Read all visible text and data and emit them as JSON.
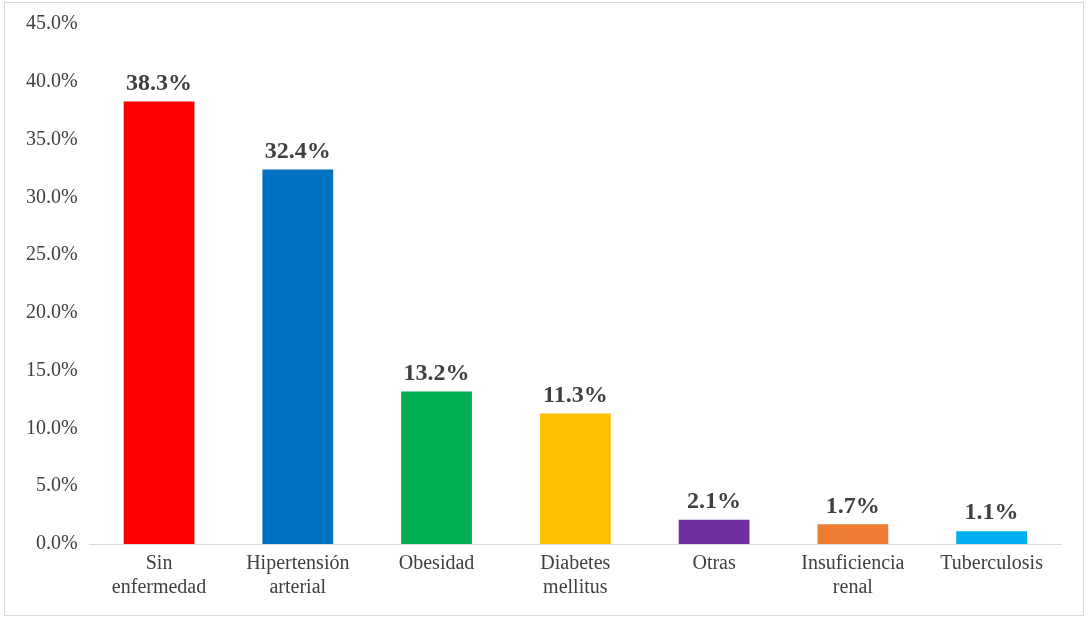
{
  "chart_data": {
    "type": "bar",
    "categories": [
      "Sin enfermedad",
      "Hipertensión arterial",
      "Obesidad",
      "Diabetes mellitus",
      "Otras",
      "Insuficiencia renal",
      "Tuberculosis"
    ],
    "values": [
      38.3,
      32.4,
      13.2,
      11.3,
      2.1,
      1.7,
      1.1
    ],
    "colors": [
      "#ff0000",
      "#0070c0",
      "#00b050",
      "#ffc000",
      "#7030a0",
      "#ed7d31",
      "#00b0f0"
    ],
    "value_labels": [
      "38.3%",
      "32.4%",
      "13.2%",
      "11.3%",
      "2.1%",
      "1.7%",
      "1.1%"
    ],
    "ylim": [
      0,
      45
    ],
    "yticks": [
      {
        "value": 0,
        "label": "0.0%"
      },
      {
        "value": 5,
        "label": "5.0%"
      },
      {
        "value": 10,
        "label": "10.0%"
      },
      {
        "value": 15,
        "label": "15.0%"
      },
      {
        "value": 20,
        "label": "20.0%"
      },
      {
        "value": 25,
        "label": "25.0%"
      },
      {
        "value": 30,
        "label": "30.0%"
      },
      {
        "value": 35,
        "label": "35.0%"
      },
      {
        "value": 40,
        "label": "40.0%"
      },
      {
        "value": 45,
        "label": "45.0%"
      }
    ],
    "grid": false,
    "legend": false
  }
}
